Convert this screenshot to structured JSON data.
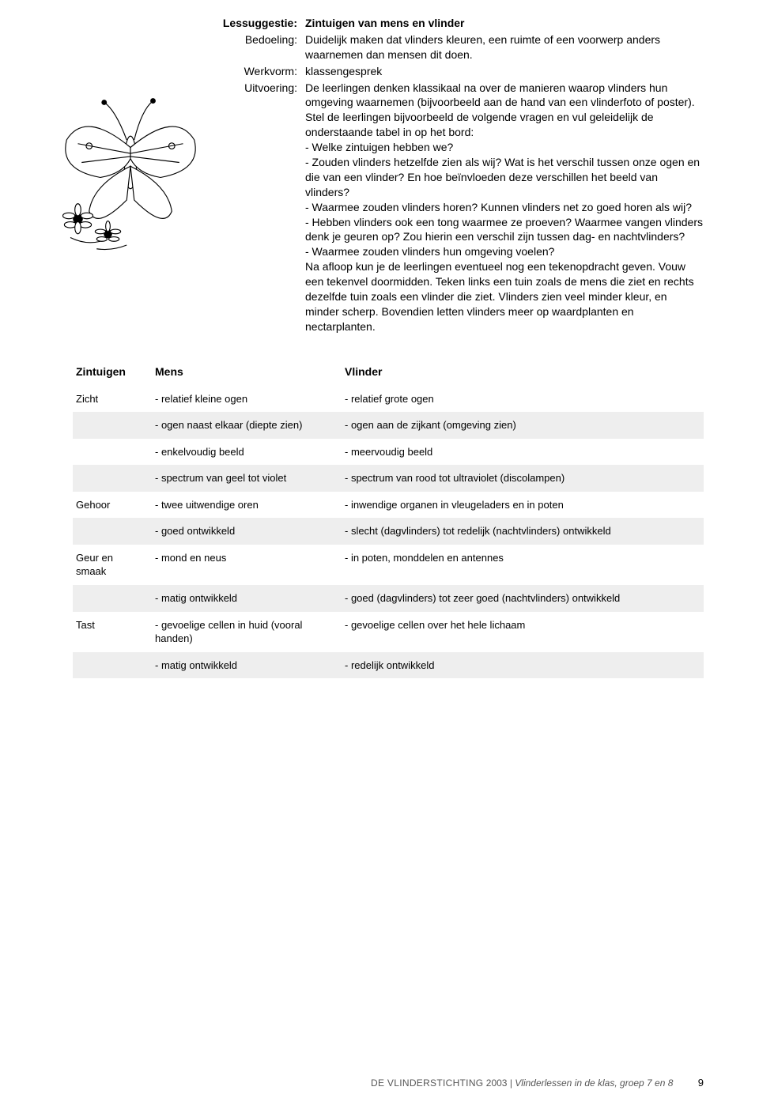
{
  "lesson": {
    "labels": {
      "lessuggestie": "Lessuggestie:",
      "bedoeling": "Bedoeling:",
      "werkvorm": "Werkvorm:",
      "uitvoering": "Uitvoering:"
    },
    "title": "Zintuigen van mens en vlinder",
    "bedoeling_text": "Duidelijk maken dat vlinders kleuren, een ruimte of een voorwerp anders waarnemen dan mensen dit doen.",
    "werkvorm_text": "klassengesprek",
    "uitvoering_text": "De leerlingen denken klassikaal na over de manieren waarop vlinders hun omgeving waarnemen (bijvoorbeeld aan de hand van een vlinderfoto of poster). Stel de leerlingen bijvoorbeeld de volgende vragen en vul geleidelijk de onderstaande tabel in op het bord:\n- Welke zintuigen hebben we?\n- Zouden vlinders hetzelfde zien als wij? Wat is het verschil tussen onze ogen en die van een vlinder? En hoe beïnvloeden deze verschillen het beeld van vlinders?\n- Waarmee zouden vlinders horen? Kunnen vlinders net zo goed horen als wij?\n- Hebben vlinders ook een tong waarmee ze proeven? Waarmee vangen vlinders denk je geuren op? Zou hierin een verschil zijn tussen dag- en nachtvlinders?\n- Waarmee zouden vlinders hun omgeving voelen?\nNa afloop kun je de leerlingen eventueel nog een tekenopdracht geven. Vouw een tekenvel doormidden. Teken links een tuin zoals de mens die ziet en rechts dezelfde tuin zoals een vlinder die ziet. Vlinders zien veel minder kleur, en minder scherp. Bovendien letten vlinders meer op waardplanten en nectarplanten."
  },
  "table": {
    "headers": {
      "c1": "Zintuigen",
      "c2": "Mens",
      "c3": "Vlinder"
    },
    "rows": [
      {
        "c1": "Zicht",
        "c2": "- relatief kleine ogen",
        "c3": "- relatief grote ogen",
        "shade": false
      },
      {
        "c1": "",
        "c2": "- ogen naast elkaar (diepte zien)",
        "c3": "- ogen aan de zijkant (omgeving zien)",
        "shade": true
      },
      {
        "c1": "",
        "c2": "- enkelvoudig beeld",
        "c3": "- meervoudig beeld",
        "shade": false
      },
      {
        "c1": "",
        "c2": "- spectrum van geel tot violet",
        "c3": "- spectrum van rood tot ultraviolet (discolampen)",
        "shade": true
      },
      {
        "c1": "Gehoor",
        "c2": "- twee uitwendige oren",
        "c3": "- inwendige organen in vleugeladers en in poten",
        "shade": false
      },
      {
        "c1": "",
        "c2": "- goed ontwikkeld",
        "c3": "- slecht (dagvlinders) tot redelijk (nachtvlinders) ontwikkeld",
        "shade": true
      },
      {
        "c1": "Geur en smaak",
        "c2": "- mond en neus",
        "c3": "- in poten, monddelen en antennes",
        "shade": false
      },
      {
        "c1": "",
        "c2": "- matig ontwikkeld",
        "c3": "- goed (dagvlinders) tot zeer goed (nachtvlinders) ontwikkeld",
        "shade": true
      },
      {
        "c1": "Tast",
        "c2": "- gevoelige cellen in huid (vooral handen)",
        "c3": "- gevoelige cellen over het hele lichaam",
        "shade": false
      },
      {
        "c1": "",
        "c2": "- matig ontwikkeld",
        "c3": "- redelijk ontwikkeld",
        "shade": true
      }
    ]
  },
  "footer": {
    "org": "DE VLINDERSTICHTING",
    "year": "2003",
    "separator": "|",
    "doc_title": "Vlinderlessen in de klas, groep 7 en 8",
    "page": "9"
  },
  "colors": {
    "shade_bg": "#eeeeee",
    "text": "#000000",
    "footer_text": "#555555",
    "background": "#ffffff"
  }
}
